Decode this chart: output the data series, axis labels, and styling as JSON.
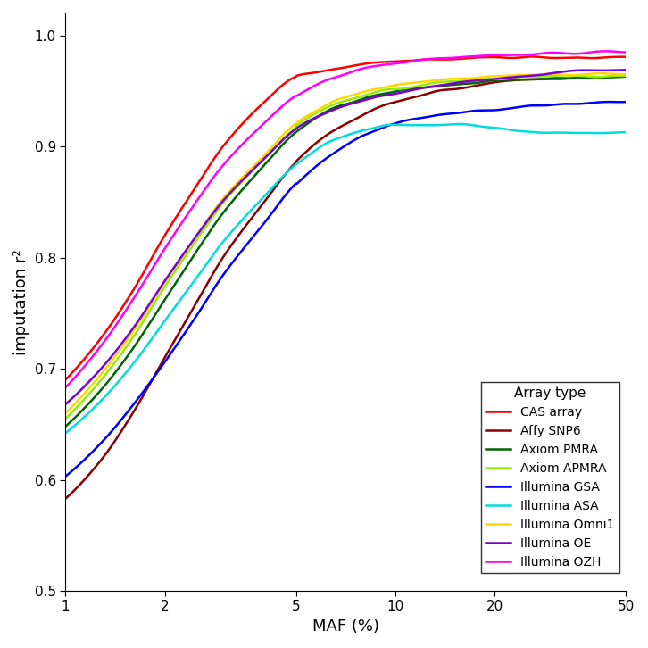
{
  "xlabel": "MAF (%)",
  "ylabel": "imputation r²",
  "xlim": [
    1,
    50
  ],
  "ylim": [
    0.5,
    1.02
  ],
  "yticks": [
    0.5,
    0.6,
    0.7,
    0.8,
    0.9,
    1.0
  ],
  "xticks": [
    1,
    2,
    5,
    10,
    20,
    50
  ],
  "series": [
    {
      "label": "CAS array",
      "color": "#FF0000",
      "lw": 1.8,
      "x_ctrl": [
        1,
        1.3,
        1.6,
        2,
        2.5,
        3,
        4,
        5,
        7,
        10,
        15,
        20,
        30,
        50
      ],
      "y_ctrl": [
        0.69,
        0.73,
        0.77,
        0.82,
        0.865,
        0.9,
        0.94,
        0.963,
        0.972,
        0.977,
        0.979,
        0.98,
        0.98,
        0.981
      ]
    },
    {
      "label": "Affy SNP6",
      "color": "#8B0000",
      "lw": 1.8,
      "x_ctrl": [
        1,
        1.3,
        1.6,
        2,
        2.5,
        3,
        4,
        5,
        7,
        10,
        15,
        20,
        30,
        50
      ],
      "y_ctrl": [
        0.583,
        0.62,
        0.66,
        0.71,
        0.76,
        0.8,
        0.85,
        0.886,
        0.92,
        0.94,
        0.952,
        0.958,
        0.962,
        0.963
      ]
    },
    {
      "label": "Axiom PMRA",
      "color": "#006400",
      "lw": 1.8,
      "x_ctrl": [
        1,
        1.3,
        1.6,
        2,
        2.5,
        3,
        4,
        5,
        7,
        10,
        15,
        20,
        30,
        50
      ],
      "y_ctrl": [
        0.648,
        0.683,
        0.718,
        0.762,
        0.806,
        0.84,
        0.883,
        0.913,
        0.938,
        0.95,
        0.956,
        0.959,
        0.961,
        0.962
      ]
    },
    {
      "label": "Axiom APMRA",
      "color": "#90EE00",
      "lw": 1.8,
      "x_ctrl": [
        1,
        1.3,
        1.6,
        2,
        2.5,
        3,
        4,
        5,
        7,
        10,
        15,
        20,
        30,
        50
      ],
      "y_ctrl": [
        0.655,
        0.692,
        0.728,
        0.774,
        0.816,
        0.849,
        0.889,
        0.917,
        0.941,
        0.952,
        0.958,
        0.961,
        0.963,
        0.963
      ]
    },
    {
      "label": "Illumina GSA",
      "color": "#0000FF",
      "lw": 1.8,
      "x_ctrl": [
        1,
        1.3,
        1.6,
        2,
        2.5,
        3,
        4,
        5,
        7,
        10,
        15,
        20,
        30,
        50
      ],
      "y_ctrl": [
        0.603,
        0.635,
        0.667,
        0.706,
        0.748,
        0.784,
        0.831,
        0.867,
        0.9,
        0.921,
        0.93,
        0.934,
        0.937,
        0.94
      ]
    },
    {
      "label": "Illumina ASA",
      "color": "#00DDDD",
      "lw": 1.8,
      "x_ctrl": [
        1,
        1.3,
        1.6,
        2,
        2.5,
        3,
        4,
        5,
        7,
        10,
        15,
        20,
        30,
        50
      ],
      "y_ctrl": [
        0.642,
        0.673,
        0.704,
        0.743,
        0.782,
        0.814,
        0.855,
        0.884,
        0.909,
        0.92,
        0.92,
        0.916,
        0.912,
        0.912
      ]
    },
    {
      "label": "Illumina Omni1",
      "color": "#FFD700",
      "lw": 1.8,
      "x_ctrl": [
        1,
        1.3,
        1.6,
        2,
        2.5,
        3,
        4,
        5,
        7,
        10,
        15,
        20,
        30,
        50
      ],
      "y_ctrl": [
        0.66,
        0.697,
        0.733,
        0.778,
        0.82,
        0.853,
        0.892,
        0.921,
        0.945,
        0.955,
        0.961,
        0.963,
        0.965,
        0.966
      ]
    },
    {
      "label": "Illumina OE",
      "color": "#7B00D4",
      "lw": 1.8,
      "x_ctrl": [
        1,
        1.3,
        1.6,
        2,
        2.5,
        3,
        4,
        5,
        7,
        10,
        15,
        20,
        30,
        50
      ],
      "y_ctrl": [
        0.668,
        0.702,
        0.736,
        0.779,
        0.82,
        0.851,
        0.889,
        0.916,
        0.937,
        0.948,
        0.957,
        0.961,
        0.966,
        0.969
      ]
    },
    {
      "label": "Illumina OZH",
      "color": "#FF00FF",
      "lw": 1.8,
      "x_ctrl": [
        1,
        1.3,
        1.6,
        2,
        2.5,
        3,
        4,
        5,
        7,
        10,
        15,
        20,
        30,
        50
      ],
      "y_ctrl": [
        0.683,
        0.723,
        0.762,
        0.808,
        0.851,
        0.883,
        0.921,
        0.946,
        0.966,
        0.975,
        0.98,
        0.982,
        0.984,
        0.985
      ]
    }
  ],
  "legend_title": "Array type",
  "noise_seed": 42
}
